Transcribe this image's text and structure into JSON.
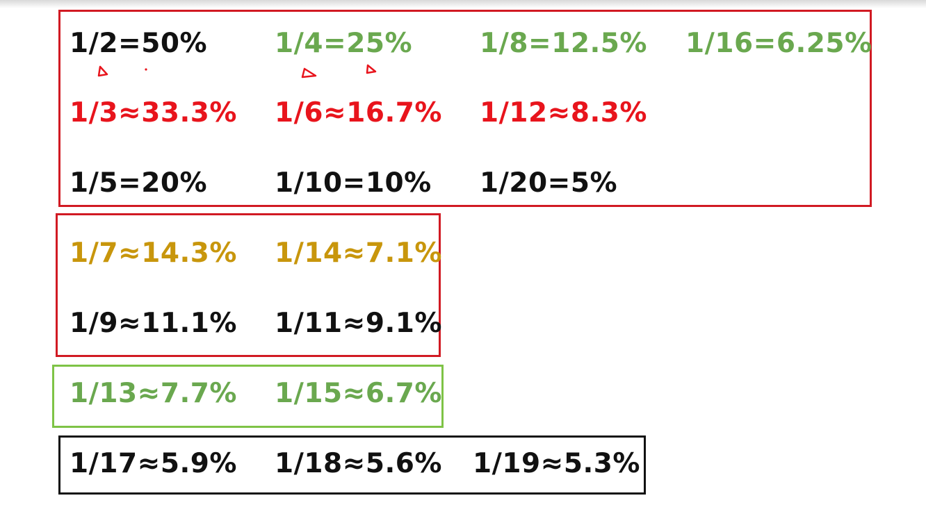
{
  "colors": {
    "black": "#111111",
    "green": "#6aa84f",
    "red": "#e8141c",
    "gold": "#c8960c",
    "box_red": "#d11a23",
    "box_green": "#7ec346",
    "box_black": "#111111"
  },
  "groups": {
    "halves_thirds_fifths": {
      "border_color": "box_red",
      "rows": [
        [
          {
            "text": "1/2=50%",
            "color": "black"
          },
          {
            "text": "1/4=25%",
            "color": "green"
          },
          {
            "text": "1/8=12.5%",
            "color": "green"
          },
          {
            "text": "1/16=6.25%",
            "color": "green"
          }
        ],
        [
          {
            "text": "1/3≈33.3%",
            "color": "red"
          },
          {
            "text": "1/6≈16.7%",
            "color": "red"
          },
          {
            "text": "1/12≈8.3%",
            "color": "red"
          }
        ],
        [
          {
            "text": "1/5=20%",
            "color": "black"
          },
          {
            "text": "1/10=10%",
            "color": "black"
          },
          {
            "text": "1/20=5%",
            "color": "black"
          }
        ]
      ]
    },
    "sevenths_ninths_elevenths": {
      "border_color": "box_red",
      "rows": [
        [
          {
            "text": "1/7≈14.3%",
            "color": "gold"
          },
          {
            "text": "1/14≈7.1%",
            "color": "gold"
          }
        ],
        [
          {
            "text": "1/9≈11.1%",
            "color": "black"
          },
          {
            "text": "1/11≈9.1%",
            "color": "black"
          }
        ]
      ]
    },
    "thirteenths_fifteenths": {
      "border_color": "box_green",
      "rows": [
        [
          {
            "text": "1/13≈7.7%",
            "color": "green"
          },
          {
            "text": "1/15≈6.7%",
            "color": "green"
          }
        ]
      ]
    },
    "seventeenths_to_nineteenths": {
      "border_color": "box_black",
      "rows": [
        [
          {
            "text": "1/17≈5.9%",
            "color": "black"
          },
          {
            "text": "1/18≈5.6%",
            "color": "black"
          },
          {
            "text": "1/19≈5.3%",
            "color": "black"
          }
        ]
      ]
    }
  }
}
